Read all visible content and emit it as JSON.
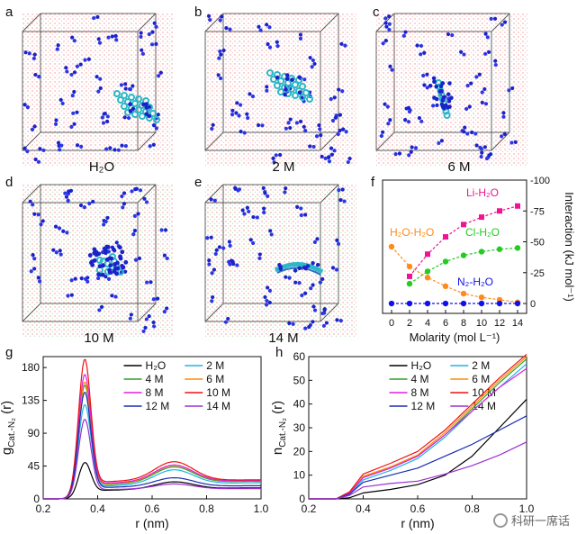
{
  "figure": {
    "panels": [
      {
        "letter": "a",
        "caption": "H₂O"
      },
      {
        "letter": "b",
        "caption": "2 M"
      },
      {
        "letter": "c",
        "caption": "6 M"
      },
      {
        "letter": "d",
        "caption": "10 M"
      },
      {
        "letter": "e",
        "caption": "14 M"
      }
    ],
    "panel_f_letter": "f",
    "panel_g_letter": "g",
    "panel_h_letter": "h"
  },
  "watermark": "科研一席话",
  "colors": {
    "H2O": "#000000",
    "2 M": "#1fb5e0",
    "4 M": "#2ca02c",
    "6 M": "#ff8c00",
    "8 M": "#e020e0",
    "10 M": "#ee1111",
    "12 M": "#1a2db0",
    "14 M": "#9b30d0",
    "LiH2O": "#ee1493",
    "ClH2O": "#22cc22",
    "H2OH2O": "#ff8c1a",
    "N2H2O": "#1010ee"
  },
  "chart_data": [
    {
      "id": "f",
      "type": "line",
      "xlabel": "Molarity (mol L⁻¹)",
      "ylabel": "Interaction (kJ mol⁻¹)",
      "xticks": [
        "0",
        "2",
        "4",
        "6",
        "8",
        "10",
        "12",
        "14"
      ],
      "yticks": [
        "-100",
        "-75",
        "-50",
        "-25",
        "0"
      ],
      "xlim": [
        -1,
        15
      ],
      "ylim": [
        -100,
        8
      ],
      "y_axis_side": "right",
      "y_inverted": true,
      "series": [
        {
          "name": "Li-H₂O",
          "label": "Li-H₂O",
          "x": [
            2,
            4,
            6,
            8,
            10,
            12,
            14
          ],
          "y": [
            -22,
            -40,
            -54,
            -64,
            -70,
            -75,
            -79
          ]
        },
        {
          "name": "Cl-H₂O",
          "label": "Cl-H₂O",
          "x": [
            2,
            4,
            6,
            8,
            10,
            12,
            14
          ],
          "y": [
            -16,
            -26,
            -34,
            -39,
            -42,
            -44,
            -45
          ]
        },
        {
          "name": "H₂O-H₂O",
          "label": "H₂O-H₂O",
          "x": [
            0,
            2,
            4,
            6,
            8,
            10,
            12,
            14
          ],
          "y": [
            -46,
            -30,
            -21,
            -14,
            -8,
            -5,
            -3,
            -1
          ]
        },
        {
          "name": "N₂-H₂O",
          "label": "N₂-H₂O",
          "x": [
            0,
            2,
            4,
            6,
            8,
            10,
            12,
            14
          ],
          "y": [
            0,
            0,
            0,
            0,
            0,
            0,
            0,
            0
          ]
        }
      ]
    },
    {
      "id": "g",
      "type": "line",
      "xlabel": "r (nm)",
      "ylabel_main": "g",
      "ylabel_sub": "Cat.-N₂",
      "ylabel_tail": " (r)",
      "xticks": [
        "0.2",
        "0.4",
        "0.6",
        "0.8",
        "1.0"
      ],
      "yticks": [
        "0",
        "45",
        "90",
        "135",
        "180"
      ],
      "xlim": [
        0.2,
        1.0
      ],
      "ylim": [
        0,
        195
      ],
      "legend": [
        "H₂O",
        "2 M",
        "4 M",
        "6 M",
        "8 M",
        "10 M",
        "12 M",
        "14 M"
      ],
      "series": [
        {
          "name": "H₂O",
          "peak1": 45,
          "min": 12,
          "peak2": 22,
          "tail": 15
        },
        {
          "name": "2 M",
          "peak1": 122,
          "min": 18,
          "peak2": 38,
          "tail": 22
        },
        {
          "name": "4 M",
          "peak1": 148,
          "min": 20,
          "peak2": 42,
          "tail": 24
        },
        {
          "name": "6 M",
          "peak1": 152,
          "min": 21,
          "peak2": 44,
          "tail": 25
        },
        {
          "name": "8 M",
          "peak1": 162,
          "min": 22,
          "peak2": 45,
          "tail": 25
        },
        {
          "name": "10 M",
          "peak1": 182,
          "min": 24,
          "peak2": 50,
          "tail": 26
        },
        {
          "name": "12 M",
          "peak1": 140,
          "min": 16,
          "peak2": 28,
          "tail": 18
        },
        {
          "name": "14 M",
          "peak1": 104,
          "min": 13,
          "peak2": 20,
          "tail": 14
        }
      ]
    },
    {
      "id": "h",
      "type": "line",
      "xlabel": "r (nm)",
      "ylabel_main": "n",
      "ylabel_sub": "Cat.-N₂",
      "ylabel_tail": " (r)",
      "xticks": [
        "0.2",
        "0.4",
        "0.6",
        "0.8",
        "1.0"
      ],
      "yticks": [
        "0",
        "10",
        "20",
        "30",
        "40",
        "50",
        "60"
      ],
      "xlim": [
        0.2,
        1.0
      ],
      "ylim": [
        0,
        60
      ],
      "legend": [
        "H₂O",
        "2 M",
        "4 M",
        "6 M",
        "8 M",
        "10 M",
        "12 M",
        "14 M"
      ],
      "series": [
        {
          "name": "H₂O",
          "x": [
            0.2,
            0.3,
            0.35,
            0.4,
            0.5,
            0.6,
            0.7,
            0.8,
            0.9,
            1.0
          ],
          "y": [
            0,
            0,
            0.5,
            2.5,
            4,
            6,
            10,
            18,
            30,
            42
          ]
        },
        {
          "name": "2 M",
          "x": [
            0.2,
            0.3,
            0.35,
            0.4,
            0.5,
            0.6,
            0.7,
            0.8,
            0.9,
            1.0
          ],
          "y": [
            0,
            0,
            2,
            8,
            12,
            17,
            26,
            37,
            47,
            57
          ]
        },
        {
          "name": "4 M",
          "x": [
            0.2,
            0.3,
            0.35,
            0.4,
            0.5,
            0.6,
            0.7,
            0.8,
            0.9,
            1.0
          ],
          "y": [
            0,
            0,
            2.5,
            9,
            13,
            18,
            27,
            38,
            49,
            59
          ]
        },
        {
          "name": "6 M",
          "x": [
            0.2,
            0.3,
            0.35,
            0.4,
            0.5,
            0.6,
            0.7,
            0.8,
            0.9,
            1.0
          ],
          "y": [
            0,
            0,
            2.5,
            9.5,
            13.5,
            18.5,
            28,
            39,
            50,
            60
          ]
        },
        {
          "name": "8 M",
          "x": [
            0.2,
            0.3,
            0.35,
            0.4,
            0.5,
            0.6,
            0.7,
            0.8,
            0.9,
            1.0
          ],
          "y": [
            0,
            0,
            2.5,
            9,
            13,
            18,
            27,
            37,
            47,
            55
          ]
        },
        {
          "name": "10 M",
          "x": [
            0.2,
            0.3,
            0.35,
            0.4,
            0.5,
            0.6,
            0.7,
            0.8,
            0.9,
            1.0
          ],
          "y": [
            0,
            0,
            3,
            10.5,
            15,
            20,
            29,
            40,
            51,
            61
          ]
        },
        {
          "name": "12 M",
          "x": [
            0.2,
            0.3,
            0.35,
            0.4,
            0.5,
            0.6,
            0.7,
            0.8,
            0.9,
            1.0
          ],
          "y": [
            0,
            0,
            2,
            7,
            10,
            13,
            18,
            23,
            29,
            35
          ]
        },
        {
          "name": "14 M",
          "x": [
            0.2,
            0.3,
            0.35,
            0.4,
            0.5,
            0.6,
            0.7,
            0.8,
            0.9,
            1.0
          ],
          "y": [
            0,
            0,
            1.5,
            5,
            6.5,
            7.5,
            10.5,
            14,
            18.5,
            24
          ]
        }
      ]
    }
  ]
}
